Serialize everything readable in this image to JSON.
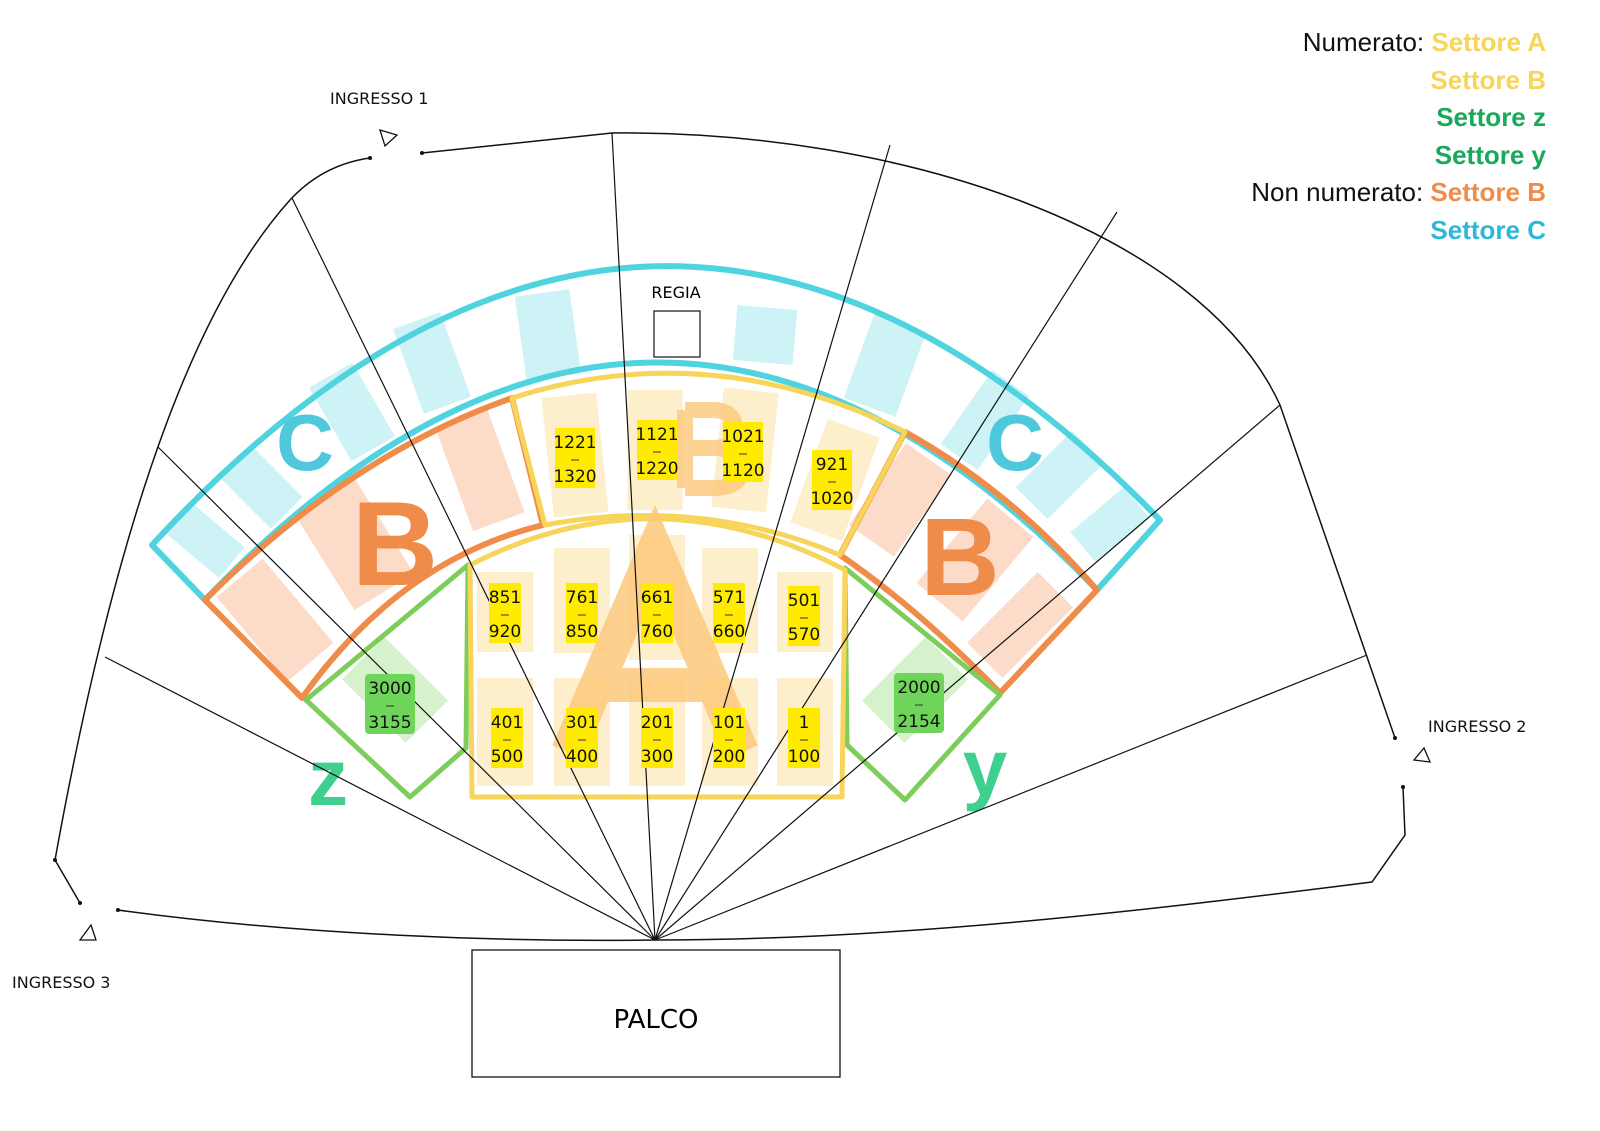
{
  "legend": {
    "numbered_label": "Numerato:",
    "unnumbered_label": "Non numerato:",
    "items": [
      {
        "text": "Settore A",
        "color": "#f7d45a"
      },
      {
        "text": "Settore B",
        "color": "#f7d45a"
      },
      {
        "text": "Settore z",
        "color": "#1aa85a"
      },
      {
        "text": "Settore y",
        "color": "#1aa85a"
      },
      {
        "text": "Settore B",
        "color": "#f08c4a"
      },
      {
        "text": "Settore C",
        "color": "#2cb8d6"
      }
    ]
  },
  "colors": {
    "yellow": "#f7d45a",
    "orange": "#f08c4a",
    "teal": "#4fd3df",
    "green": "#7ccd5a",
    "seat_yellow": "#ffeb00",
    "seat_green": "#6fd45a"
  },
  "venue": {
    "entrance_1": "INGRESSO 1",
    "entrance_2": "INGRESSO 2",
    "entrance_3": "INGRESSO 3",
    "control_booth": "REGIA",
    "stage": "PALCO"
  },
  "sector_letters": {
    "c_left": "C",
    "c_right": "C",
    "b_left": "B",
    "b_right": "B",
    "b_center": "B",
    "a": "A",
    "z": "z",
    "y": "y"
  },
  "seat_ranges": [
    {
      "from": "1221",
      "to": "1320"
    },
    {
      "from": "1121",
      "to": "1220"
    },
    {
      "from": "1021",
      "to": "1120"
    },
    {
      "from": "921",
      "to": "1020"
    },
    {
      "from": "851",
      "to": "920"
    },
    {
      "from": "761",
      "to": "850"
    },
    {
      "from": "661",
      "to": "760"
    },
    {
      "from": "571",
      "to": "660"
    },
    {
      "from": "501",
      "to": "570"
    },
    {
      "from": "401",
      "to": "500"
    },
    {
      "from": "301",
      "to": "400"
    },
    {
      "from": "201",
      "to": "300"
    },
    {
      "from": "101",
      "to": "200"
    },
    {
      "from": "1",
      "to": "100"
    }
  ],
  "green_ranges": [
    {
      "from": "3000",
      "to": "3155"
    },
    {
      "from": "2000",
      "to": "2154"
    }
  ]
}
